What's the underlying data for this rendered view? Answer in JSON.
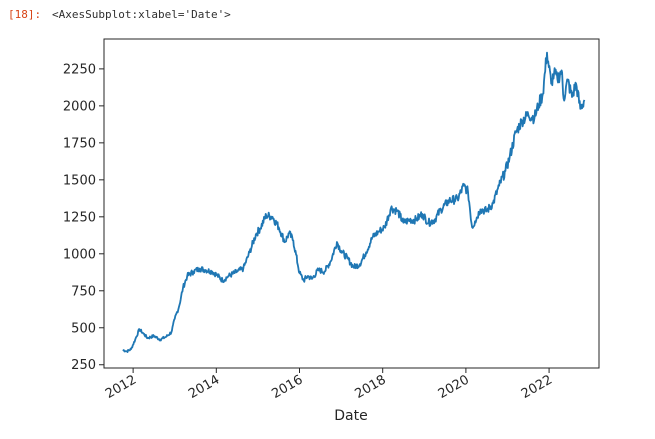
{
  "cell": {
    "prompt": "[18]:",
    "repr": "<AxesSubplot:xlabel='Date'>"
  },
  "chart_data": {
    "type": "line",
    "title": "",
    "xlabel": "Date",
    "ylabel": "",
    "xlim": [
      2011.3,
      2023.2
    ],
    "ylim": [
      228,
      2452
    ],
    "x_ticks": [
      2012,
      2014,
      2016,
      2018,
      2020,
      2022
    ],
    "x_tick_labels": [
      "2012",
      "2014",
      "2016",
      "2018",
      "2020",
      "2022"
    ],
    "y_ticks": [
      250,
      500,
      750,
      1000,
      1250,
      1500,
      1750,
      2000,
      2250
    ],
    "y_tick_labels": [
      "250",
      "500",
      "750",
      "1000",
      "1250",
      "1500",
      "1750",
      "2000",
      "2250"
    ],
    "grid": false,
    "legend": false,
    "line_color": "#1f77b4",
    "series": [
      {
        "x": [
          2011.75,
          2011.85,
          2011.95,
          2012.05,
          2012.15,
          2012.25,
          2012.35,
          2012.5,
          2012.65,
          2012.8,
          2012.92,
          2013.0,
          2013.1,
          2013.2,
          2013.3,
          2013.45,
          2013.6,
          2013.75,
          2013.9,
          2014.0,
          2014.15,
          2014.3,
          2014.5,
          2014.65,
          2014.8,
          2014.95,
          2015.05,
          2015.2,
          2015.35,
          2015.5,
          2015.65,
          2015.75,
          2015.85,
          2016.0,
          2016.1,
          2016.2,
          2016.3,
          2016.45,
          2016.6,
          2016.75,
          2016.9,
          2017.0,
          2017.15,
          2017.3,
          2017.45,
          2017.6,
          2017.75,
          2017.9,
          2018.05,
          2018.2,
          2018.35,
          2018.5,
          2018.65,
          2018.8,
          2018.95,
          2019.1,
          2019.25,
          2019.4,
          2019.6,
          2019.8,
          2019.95,
          2020.05,
          2020.15,
          2020.22,
          2020.35,
          2020.5,
          2020.65,
          2020.8,
          2020.95,
          2021.05,
          2021.2,
          2021.35,
          2021.5,
          2021.65,
          2021.75,
          2021.85,
          2021.95,
          2022.05,
          2022.12,
          2022.2,
          2022.3,
          2022.35,
          2022.45,
          2022.55,
          2022.65,
          2022.75,
          2022.85
        ],
        "values": [
          350,
          340,
          355,
          420,
          490,
          460,
          430,
          445,
          420,
          440,
          470,
          560,
          640,
          770,
          850,
          880,
          900,
          890,
          880,
          860,
          820,
          850,
          880,
          900,
          1010,
          1130,
          1170,
          1260,
          1250,
          1180,
          1080,
          1140,
          1090,
          870,
          820,
          850,
          830,
          890,
          880,
          950,
          1080,
          1020,
          970,
          910,
          930,
          1010,
          1110,
          1150,
          1180,
          1310,
          1290,
          1210,
          1230,
          1230,
          1270,
          1210,
          1230,
          1300,
          1360,
          1370,
          1460,
          1420,
          1180,
          1220,
          1300,
          1290,
          1340,
          1460,
          1560,
          1650,
          1820,
          1900,
          1940,
          1920,
          2010,
          2080,
          2360,
          2150,
          2220,
          2180,
          2240,
          2050,
          2170,
          2060,
          2150,
          1980,
          2040
        ]
      }
    ]
  }
}
